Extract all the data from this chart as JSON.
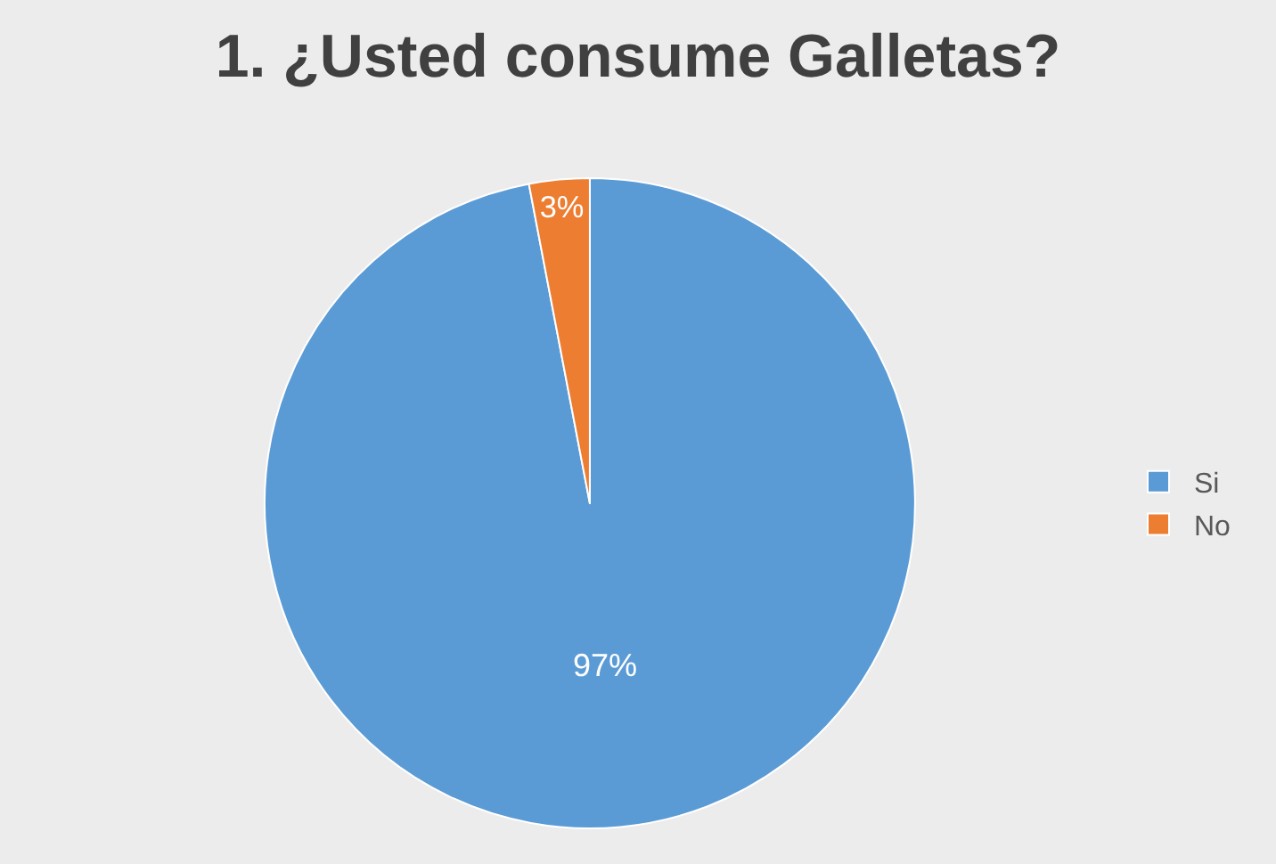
{
  "chart_data": {
    "type": "pie",
    "title": "1. ¿Usted consume Galletas?",
    "categories": [
      "Si",
      "No"
    ],
    "values": [
      97,
      3
    ],
    "value_labels": [
      "97%",
      "3%"
    ],
    "colors": [
      "#5b9bd5",
      "#ed7d31"
    ],
    "legend": "right"
  }
}
